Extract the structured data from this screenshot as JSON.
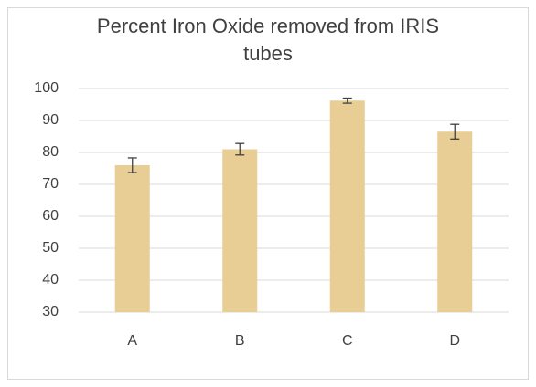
{
  "chart_data": {
    "type": "bar",
    "title": "Percent Iron Oxide removed from IRIS tubes",
    "categories": [
      "A",
      "B",
      "C",
      "D"
    ],
    "values": [
      76,
      81,
      96.2,
      86.5
    ],
    "errors": [
      2.3,
      1.8,
      0.8,
      2.3
    ],
    "color": "#e8cd95",
    "ylim": [
      30,
      100
    ],
    "yticks": [
      30,
      40,
      50,
      60,
      70,
      80,
      90,
      100
    ],
    "grid": true
  }
}
